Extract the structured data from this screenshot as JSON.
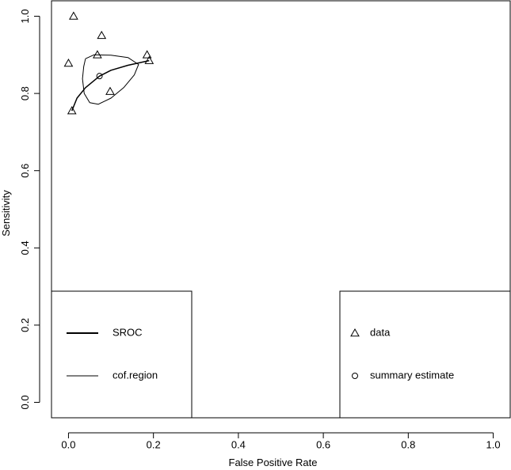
{
  "chart_data": {
    "type": "scatter",
    "xlabel": "False Positive Rate",
    "ylabel": "Sensitivity",
    "xlim": [
      -0.04,
      1.04
    ],
    "ylim": [
      -0.04,
      1.04
    ],
    "x_ticks": [
      0.0,
      0.2,
      0.4,
      0.6,
      0.8,
      1.0
    ],
    "y_ticks": [
      0.0,
      0.2,
      0.4,
      0.6,
      0.8,
      1.0
    ],
    "x_tick_labels": [
      "0.0",
      "0.2",
      "0.4",
      "0.6",
      "0.8",
      "1.0"
    ],
    "y_tick_labels": [
      "0.0",
      "0.2",
      "0.4",
      "0.6",
      "0.8",
      "1.0"
    ],
    "grid": false,
    "series": [
      {
        "name": "data",
        "marker": "triangle",
        "points": [
          {
            "x": 0.012,
            "y": 1.0
          },
          {
            "x": 0.078,
            "y": 0.95
          },
          {
            "x": 0.0,
            "y": 0.878
          },
          {
            "x": 0.068,
            "y": 0.9
          },
          {
            "x": 0.185,
            "y": 0.9
          },
          {
            "x": 0.19,
            "y": 0.885
          },
          {
            "x": 0.098,
            "y": 0.805
          },
          {
            "x": 0.008,
            "y": 0.755
          }
        ]
      },
      {
        "name": "summary estimate",
        "marker": "circle",
        "points": [
          {
            "x": 0.073,
            "y": 0.845
          }
        ]
      },
      {
        "name": "SROC",
        "style": "thick-line",
        "points": [
          {
            "x": 0.008,
            "y": 0.755
          },
          {
            "x": 0.02,
            "y": 0.788
          },
          {
            "x": 0.04,
            "y": 0.815
          },
          {
            "x": 0.073,
            "y": 0.845
          },
          {
            "x": 0.1,
            "y": 0.86
          },
          {
            "x": 0.14,
            "y": 0.873
          },
          {
            "x": 0.19,
            "y": 0.885
          }
        ]
      },
      {
        "name": "cof.region",
        "style": "thin-line",
        "points": [
          {
            "x": 0.04,
            "y": 0.89
          },
          {
            "x": 0.06,
            "y": 0.9
          },
          {
            "x": 0.1,
            "y": 0.899
          },
          {
            "x": 0.14,
            "y": 0.893
          },
          {
            "x": 0.165,
            "y": 0.875
          },
          {
            "x": 0.155,
            "y": 0.848
          },
          {
            "x": 0.13,
            "y": 0.815
          },
          {
            "x": 0.1,
            "y": 0.788
          },
          {
            "x": 0.07,
            "y": 0.772
          },
          {
            "x": 0.05,
            "y": 0.776
          },
          {
            "x": 0.037,
            "y": 0.8
          },
          {
            "x": 0.033,
            "y": 0.838
          },
          {
            "x": 0.036,
            "y": 0.87
          },
          {
            "x": 0.04,
            "y": 0.89
          }
        ]
      }
    ],
    "legends": [
      {
        "placement": "bottom-left",
        "entries": [
          {
            "label": "SROC",
            "key": "thick-line"
          },
          {
            "label": "cof.region",
            "key": "thin-line"
          }
        ]
      },
      {
        "placement": "bottom-right",
        "entries": [
          {
            "label": "data",
            "key": "triangle"
          },
          {
            "label": "summary estimate",
            "key": "circle"
          }
        ]
      }
    ]
  }
}
